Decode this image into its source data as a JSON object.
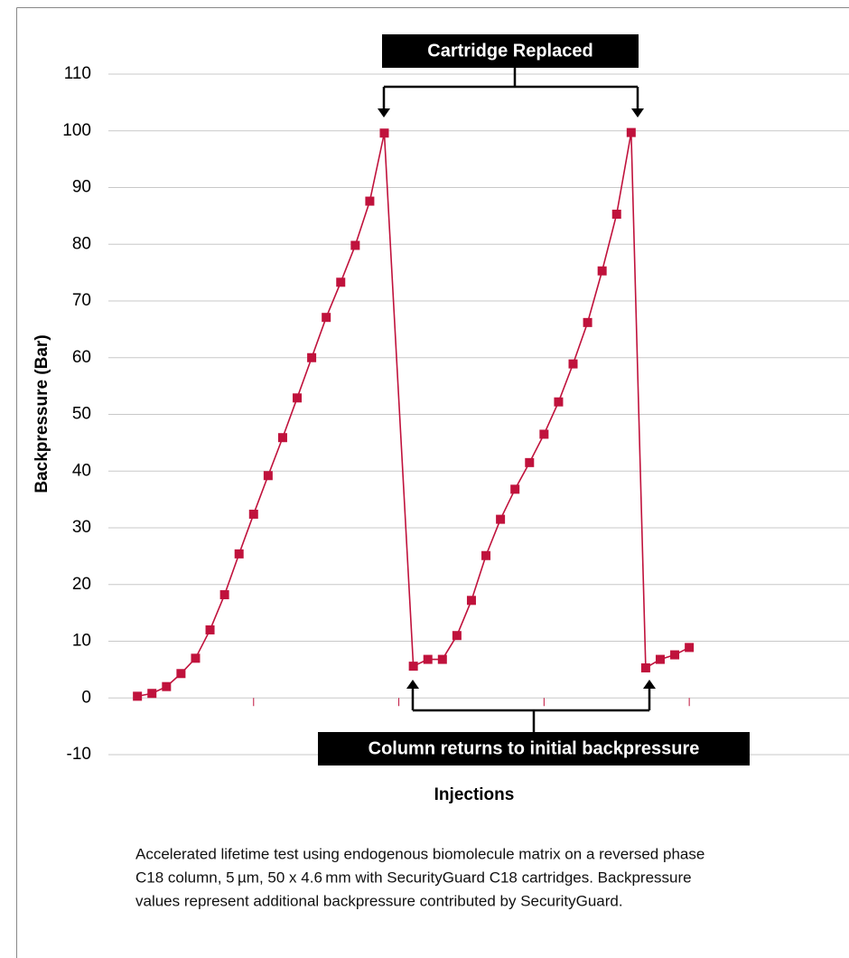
{
  "chart_data": {
    "type": "line",
    "y_label": "Backpressure (Bar)",
    "x_label": "Injections",
    "annotations": [
      "Cartridge Replaced",
      "Column returns to initial backpressure"
    ],
    "caption": [
      "Accelerated lifetime test using endogenous biomolecule matrix on a reversed phase",
      "C18 column, 5 µm, 50 x 4.6 mm with SecurityGuard C18 cartridges. Backpressure",
      "values represent additional backpressure contributed by SecurityGuard."
    ],
    "x": [
      1,
      2,
      3,
      4,
      5,
      6,
      7,
      8,
      9,
      10,
      11,
      12,
      13,
      14,
      15,
      16,
      17,
      18,
      20,
      21,
      22,
      23,
      24,
      25,
      26,
      27,
      28,
      29,
      30,
      31,
      32,
      33,
      34,
      35,
      36,
      37,
      38,
      39
    ],
    "values": [
      0.3,
      0.8,
      2,
      4.3,
      7,
      12,
      18.2,
      25.4,
      32.4,
      39.2,
      45.9,
      52.9,
      60,
      67.1,
      73.3,
      79.8,
      87.6,
      99.6,
      5.6,
      6.8,
      6.8,
      11,
      17.2,
      25.1,
      31.5,
      36.8,
      41.5,
      46.5,
      52.2,
      58.9,
      66.2,
      75.3,
      85.3,
      99.7,
      5.3,
      6.8,
      7.6,
      8.9
    ],
    "color": "#c0123c",
    "xlim": [
      -1,
      50
    ],
    "xticks": [
      9,
      19,
      29,
      39
    ],
    "ylim": [
      -10,
      110
    ],
    "yticks": [
      -10,
      0,
      10,
      20,
      30,
      40,
      50,
      60,
      70,
      80,
      90,
      100,
      110
    ],
    "grid": true
  }
}
